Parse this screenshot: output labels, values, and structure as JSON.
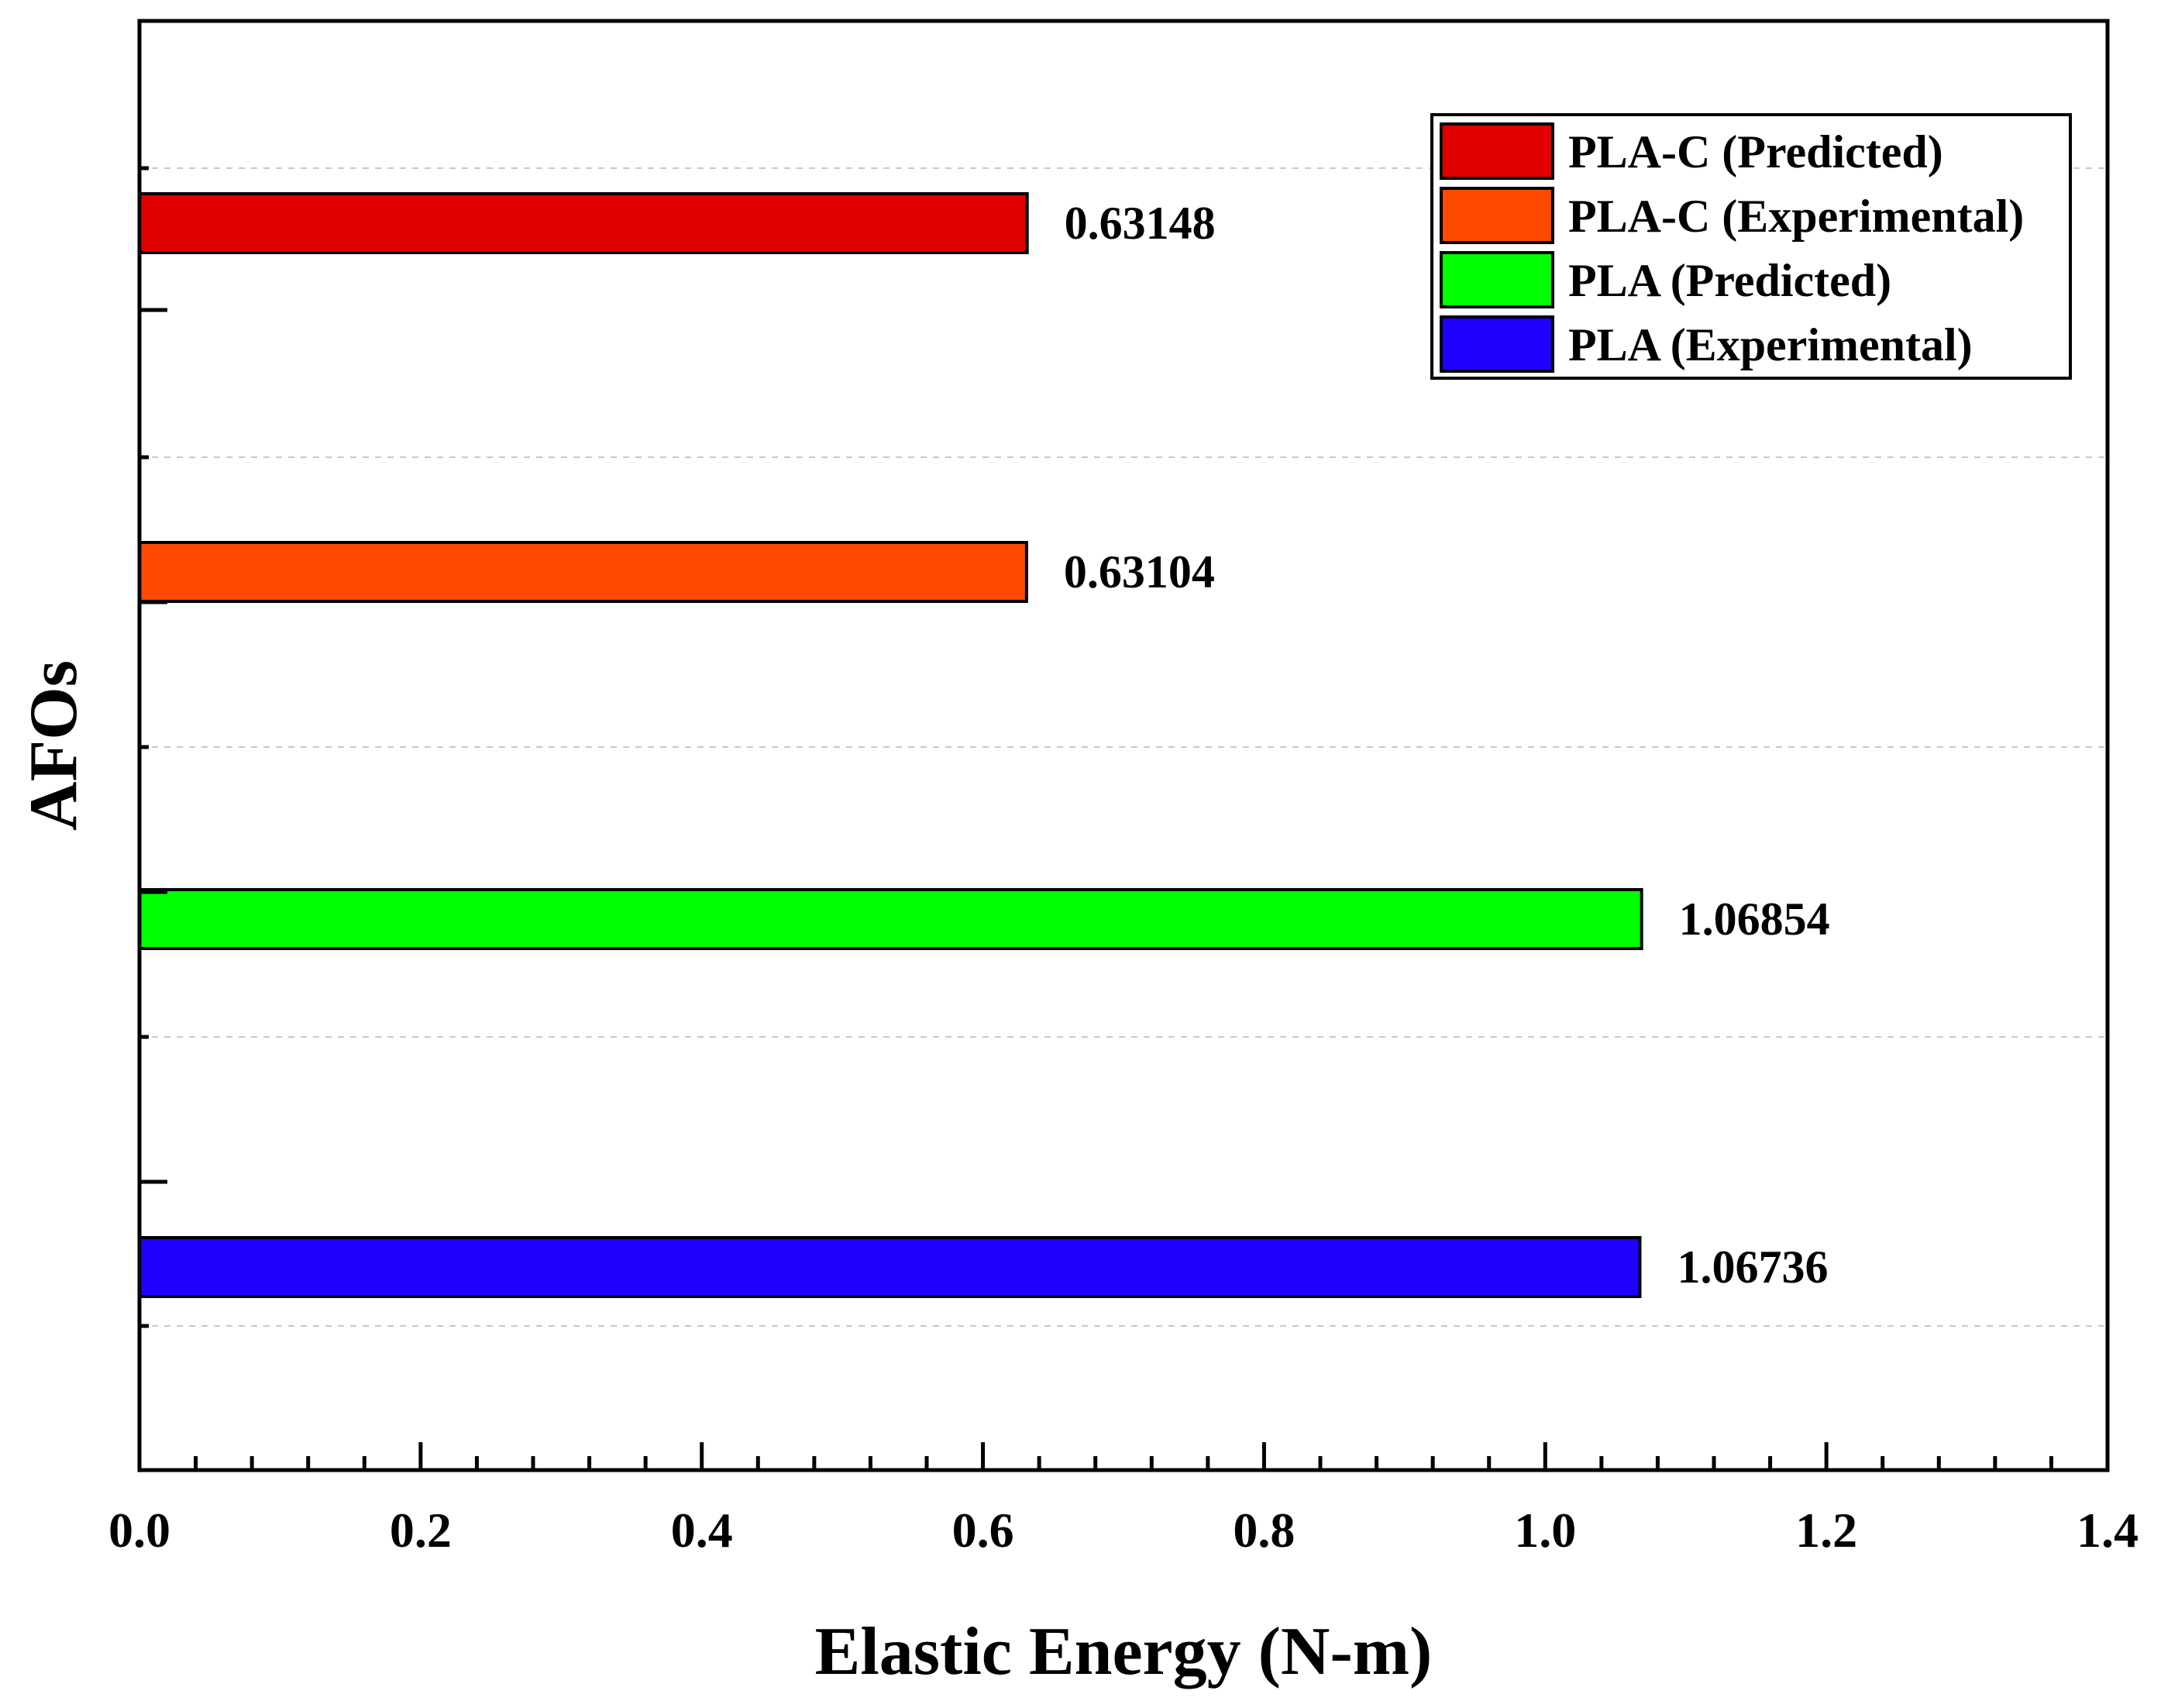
{
  "chart_data": {
    "type": "bar",
    "orientation": "horizontal",
    "title": "",
    "xlabel": "Elastic Energy (N-m)",
    "ylabel": "AFOs",
    "xlim": [
      0.0,
      1.4
    ],
    "xticks": [
      "0.0",
      "0.2",
      "0.4",
      "0.6",
      "0.8",
      "1.0",
      "1.2",
      "1.4"
    ],
    "grid": "dashed horizontal",
    "legend_position": "top-right",
    "series": [
      {
        "name": "PLA-C (Predicted)",
        "value": 0.63148,
        "label": "0.63148",
        "color": "#e00000"
      },
      {
        "name": "PLA-C (Experimental)",
        "value": 0.63104,
        "label": "0.63104",
        "color": "#ff4a00"
      },
      {
        "name": "PLA (Predicted)",
        "value": 1.06854,
        "label": "1.06854",
        "color": "#00ff00"
      },
      {
        "name": "PLA (Experimental)",
        "value": 1.06736,
        "label": "1.06736",
        "color": "#1f00ff"
      }
    ]
  }
}
